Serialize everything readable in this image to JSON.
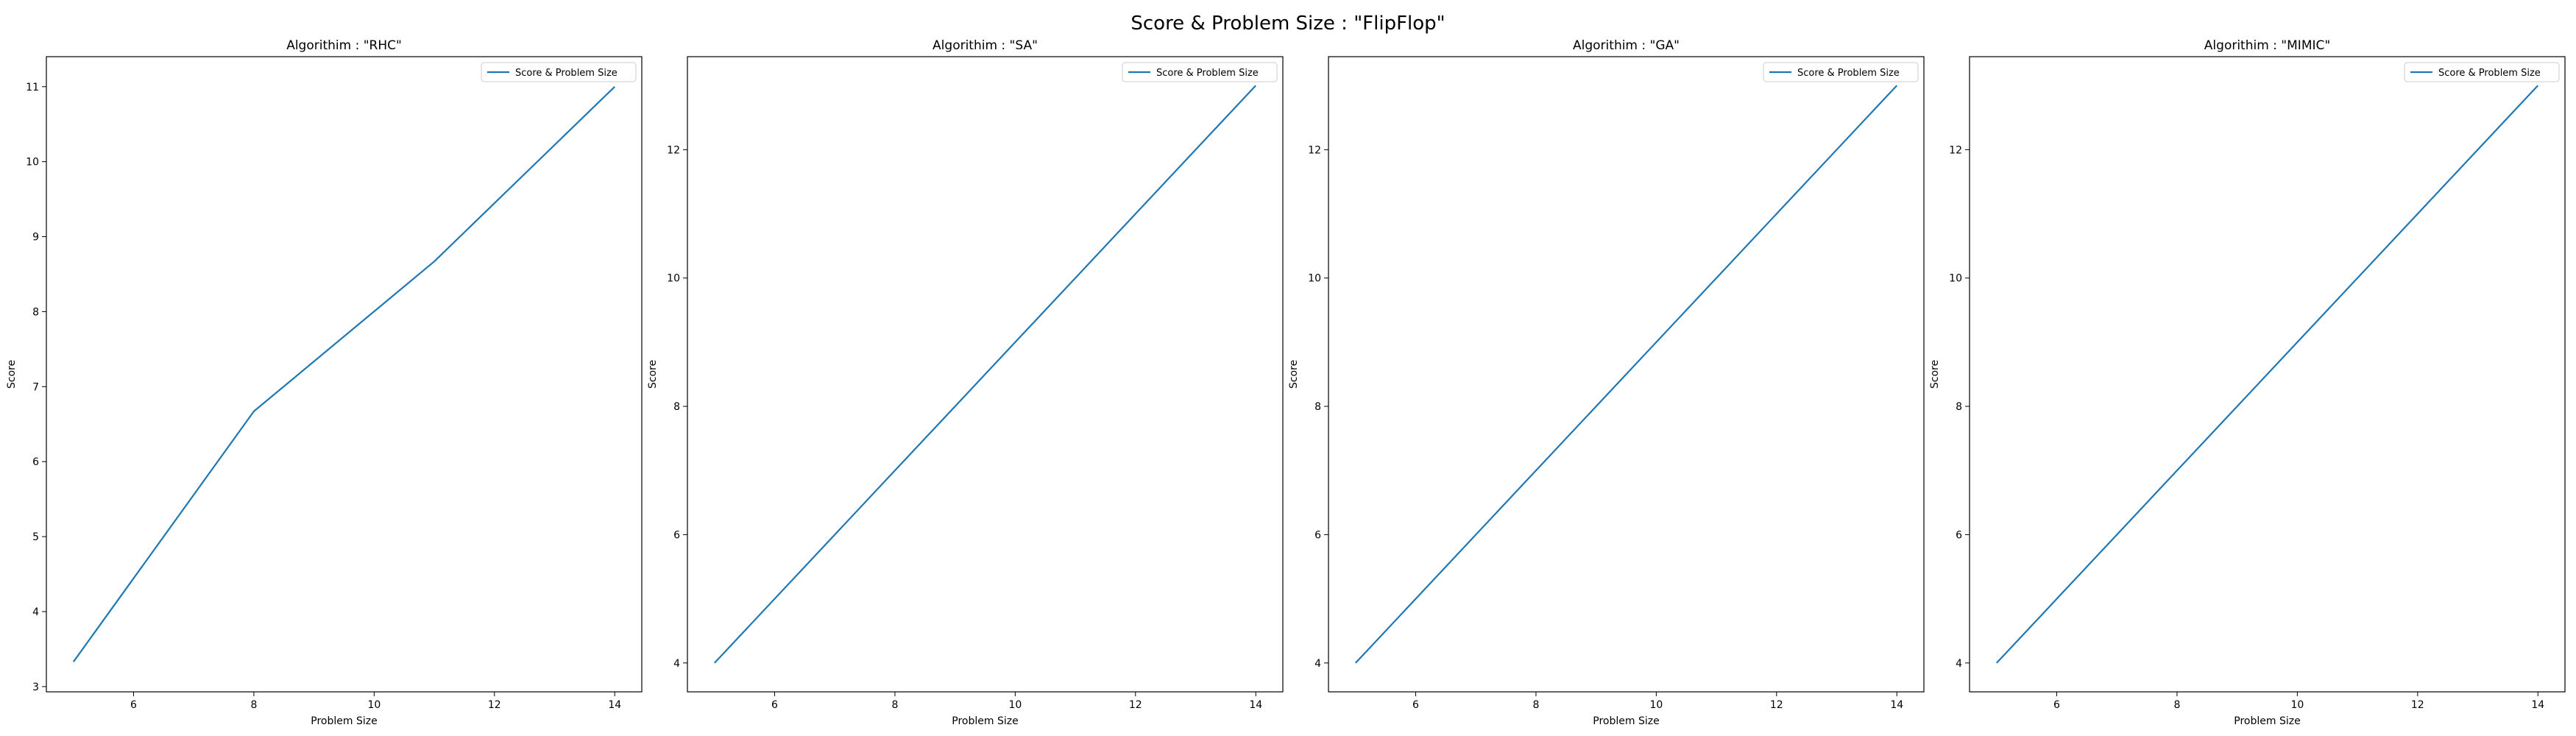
{
  "suptitle": "Score & Problem Size : \"FlipFlop\"",
  "colors": {
    "line": "#1f77b4",
    "axis": "#000000",
    "background": "#ffffff"
  },
  "chart_data": [
    {
      "type": "line",
      "title": "Algorithim : \"RHC\"",
      "xlabel": "Problem Size",
      "ylabel": "Score",
      "x": [
        5,
        8,
        11,
        14
      ],
      "series": [
        {
          "name": "Score & Problem Size",
          "values": [
            3.33,
            6.67,
            8.67,
            11.0
          ]
        }
      ],
      "xlim": [
        4.55,
        14.45
      ],
      "ylim": [
        2.93,
        11.4
      ],
      "xticks": [
        6,
        8,
        10,
        12,
        14
      ],
      "yticks": [
        3,
        4,
        5,
        6,
        7,
        8,
        9,
        10,
        11
      ],
      "grid": false,
      "legend": "upper right"
    },
    {
      "type": "line",
      "title": "Algorithim : \"SA\"",
      "xlabel": "Problem Size",
      "ylabel": "Score",
      "x": [
        5,
        8,
        11,
        14
      ],
      "series": [
        {
          "name": "Score & Problem Size",
          "values": [
            4,
            7,
            10,
            13
          ]
        }
      ],
      "xlim": [
        4.55,
        14.45
      ],
      "ylim": [
        3.55,
        13.45
      ],
      "xticks": [
        6,
        8,
        10,
        12,
        14
      ],
      "yticks": [
        4,
        6,
        8,
        10,
        12
      ],
      "grid": false,
      "legend": "upper right"
    },
    {
      "type": "line",
      "title": "Algorithim : \"GA\"",
      "xlabel": "Problem Size",
      "ylabel": "Score",
      "x": [
        5,
        8,
        11,
        14
      ],
      "series": [
        {
          "name": "Score & Problem Size",
          "values": [
            4,
            7,
            10,
            13
          ]
        }
      ],
      "xlim": [
        4.55,
        14.45
      ],
      "ylim": [
        3.55,
        13.45
      ],
      "xticks": [
        6,
        8,
        10,
        12,
        14
      ],
      "yticks": [
        4,
        6,
        8,
        10,
        12
      ],
      "grid": false,
      "legend": "upper right"
    },
    {
      "type": "line",
      "title": "Algorithim : \"MIMIC\"",
      "xlabel": "Problem Size",
      "ylabel": "Score",
      "x": [
        5,
        8,
        11,
        14
      ],
      "series": [
        {
          "name": "Score & Problem Size",
          "values": [
            4,
            7,
            10,
            13
          ]
        }
      ],
      "xlim": [
        4.55,
        14.45
      ],
      "ylim": [
        3.55,
        13.45
      ],
      "xticks": [
        6,
        8,
        10,
        12,
        14
      ],
      "yticks": [
        4,
        6,
        8,
        10,
        12
      ],
      "grid": false,
      "legend": "upper right"
    }
  ]
}
